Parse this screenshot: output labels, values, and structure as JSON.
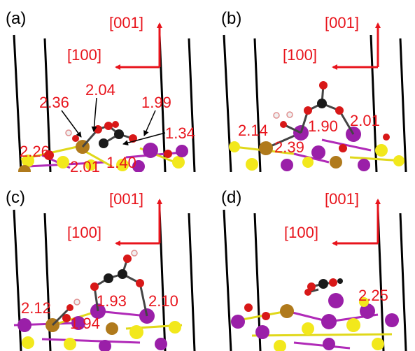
{
  "colors": {
    "annotation": "#e8141c",
    "axis_arrow": "#e8141c",
    "boundary": "#000000",
    "carbon": "#1a1a1a",
    "oxygen": "#d81818",
    "hydrogen": "#f0f0f0",
    "hydrogen_edge": "#e09090",
    "sulfur": "#f2e81c",
    "molybdenum": "#9a1fa8",
    "iron": "#b07a1c",
    "bond_s": "#e0d81a",
    "bond_mo": "#b02ab8"
  },
  "panels": [
    {
      "label": "(a)",
      "axis_up": "[001]",
      "axis_left": "[100]",
      "distances": [
        "2.36",
        "2.04",
        "1.99",
        "2.26",
        "1.34",
        "2.01",
        "1.40"
      ]
    },
    {
      "label": "(b)",
      "axis_up": "[001]",
      "axis_left": "[100]",
      "distances": [
        "1.90",
        "2.01",
        "2.14",
        "2.39"
      ]
    },
    {
      "label": "(c)",
      "axis_up": "[001]",
      "axis_left": "[100]",
      "distances": [
        "2.12",
        "1.93",
        "2.10",
        "1.94"
      ]
    },
    {
      "label": "(d)",
      "axis_up": "[001]",
      "axis_left": "[100]",
      "distances": [
        "2.25"
      ]
    }
  ]
}
